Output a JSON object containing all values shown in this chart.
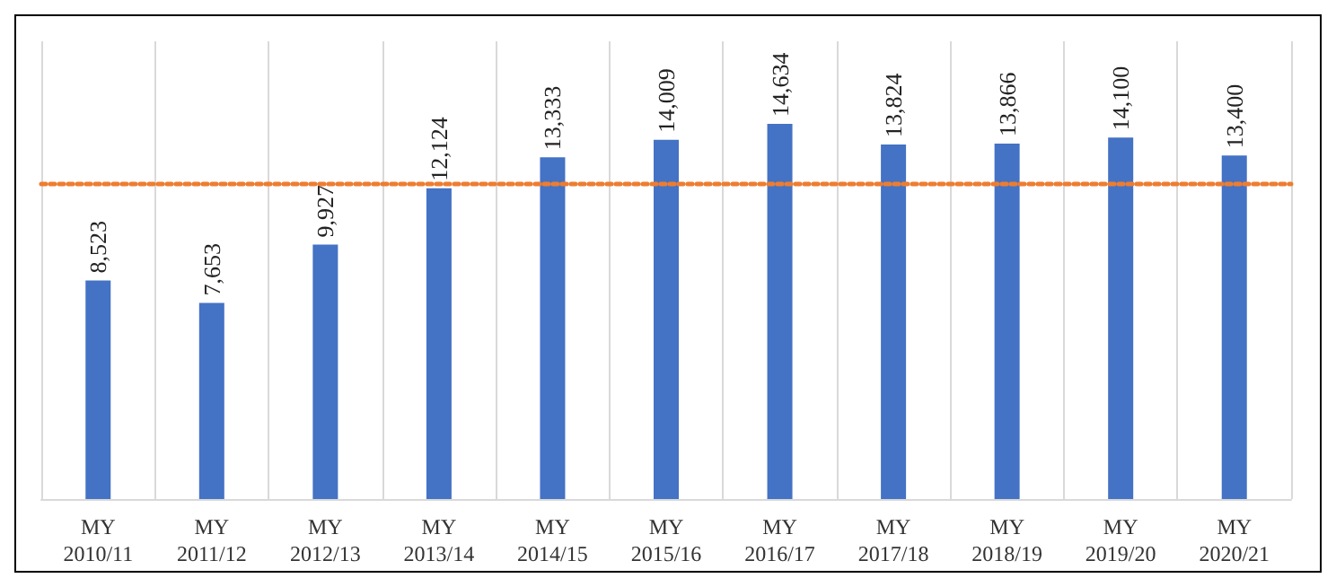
{
  "chart_data": {
    "type": "bar",
    "categories": [
      "MY 2010/11",
      "MY 2011/12",
      "MY 2012/13",
      "MY 2013/14",
      "MY 2014/15",
      "MY 2015/16",
      "MY 2016/17",
      "MY 2017/18",
      "MY 2018/19",
      "MY 2019/20",
      "MY 2020/21"
    ],
    "values": [
      8523,
      7653,
      9927,
      12124,
      13333,
      14009,
      14634,
      13824,
      13866,
      14100,
      13400
    ],
    "value_labels": [
      "8,523",
      "7,653",
      "9,927",
      "12,124",
      "13,333",
      "14,009",
      "14,634",
      "13,824",
      "13,866",
      "14,100",
      "13,400"
    ],
    "color": "#4472c4",
    "grid": "x",
    "ref_lines": [
      {
        "axis": "y",
        "value": 12300,
        "color": "#ed7d31",
        "line_style": "dotted"
      }
    ]
  }
}
